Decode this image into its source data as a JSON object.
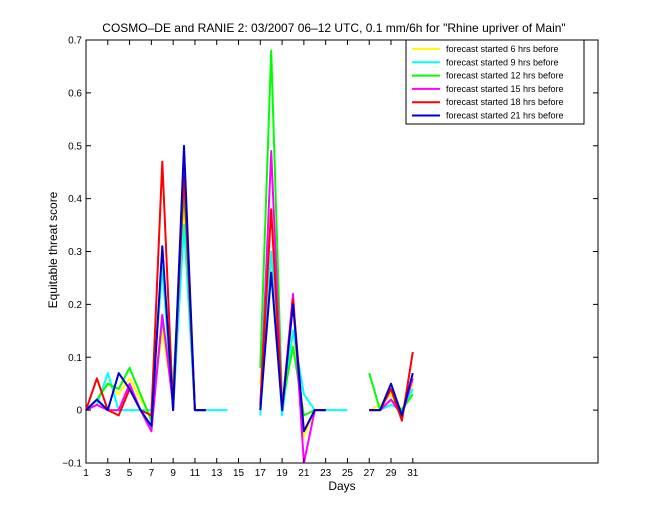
{
  "chart_data": {
    "type": "line",
    "title": "COSMO–DE and RANIE 2: 03/2007 06–12 UTC, 0.1 mm/6h for \"Rhine upriver of Main\"",
    "xlabel": "Days",
    "ylabel": "Equitable threat score",
    "xlim": [
      1,
      48
    ],
    "ylim": [
      -0.1,
      0.7
    ],
    "xticks": [
      1,
      3,
      5,
      7,
      9,
      11,
      13,
      15,
      17,
      19,
      21,
      23,
      25,
      27,
      29,
      31
    ],
    "yticks": [
      -0.1,
      0,
      0.1,
      0.2,
      0.3,
      0.4,
      0.5,
      0.6,
      0.7
    ],
    "ytick_labels": [
      "−0.1",
      "0",
      "0.1",
      "0.2",
      "0.3",
      "0.4",
      "0.5",
      "0.6",
      "0.7"
    ],
    "legend_position": "top-right",
    "grid": false,
    "x": [
      1,
      2,
      3,
      4,
      5,
      6,
      7,
      8,
      9,
      10,
      11,
      12,
      13,
      14,
      15,
      16,
      17,
      18,
      19,
      20,
      21,
      22,
      23,
      24,
      25,
      26,
      27,
      28,
      29,
      30,
      31
    ],
    "series": [
      {
        "name": "forecast started 6 hrs before",
        "color": "#ffff00",
        "values": [
          0,
          0.02,
          0.05,
          0.03,
          0.06,
          0.02,
          -0.01,
          0.15,
          0.02,
          0.4,
          0,
          0,
          null,
          null,
          null,
          null,
          0.05,
          0.3,
          0,
          0.15,
          -0.05,
          0,
          0,
          0,
          null,
          null,
          0,
          0.01,
          0.03,
          0,
          0.05
        ]
      },
      {
        "name": "forecast started 9 hrs before",
        "color": "#00ffff",
        "values": [
          0,
          0.01,
          0.07,
          0,
          0,
          0,
          0,
          0.27,
          0,
          0.35,
          0,
          0,
          0,
          0,
          null,
          null,
          -0.01,
          0.3,
          -0.01,
          0.15,
          0.03,
          0,
          0,
          0,
          0,
          null,
          0,
          0,
          0.01,
          0,
          0.04
        ]
      },
      {
        "name": "forecast started 12 hrs before",
        "color": "#00ff00",
        "values": [
          0,
          0.02,
          0.05,
          0.04,
          0.08,
          0.03,
          -0.02,
          0.17,
          0.04,
          0.42,
          0,
          0,
          null,
          null,
          null,
          null,
          0.08,
          0.68,
          0.01,
          0.12,
          -0.01,
          0,
          0,
          null,
          null,
          null,
          0.07,
          0,
          0.02,
          0,
          0.03
        ]
      },
      {
        "name": "forecast started 15 hrs before",
        "color": "#ff00ff",
        "values": [
          0,
          0.01,
          0,
          0,
          0.05,
          0,
          -0.04,
          0.18,
          0.01,
          0.46,
          0,
          0,
          null,
          null,
          null,
          null,
          0,
          0.49,
          0,
          0.22,
          -0.1,
          0,
          0,
          null,
          null,
          null,
          0,
          0,
          0.02,
          -0.01,
          0.06
        ]
      },
      {
        "name": "forecast started 18 hrs before",
        "color": "#ff0000",
        "values": [
          0,
          0.06,
          0,
          -0.01,
          0.04,
          0,
          -0.01,
          0.47,
          0,
          0.45,
          0,
          0,
          null,
          null,
          null,
          null,
          0.01,
          0.38,
          0,
          0.21,
          -0.04,
          0,
          0,
          null,
          null,
          null,
          0,
          0,
          0.04,
          -0.02,
          0.11
        ]
      },
      {
        "name": "forecast started 21 hrs before",
        "color": "#0000cc",
        "values": [
          0,
          0.02,
          0,
          0.07,
          0.04,
          0,
          -0.03,
          0.31,
          0,
          0.5,
          0,
          0,
          null,
          null,
          null,
          null,
          0,
          0.26,
          0,
          0.2,
          -0.04,
          0,
          0,
          null,
          null,
          null,
          0,
          0,
          0.05,
          -0.01,
          0.07
        ]
      }
    ]
  }
}
